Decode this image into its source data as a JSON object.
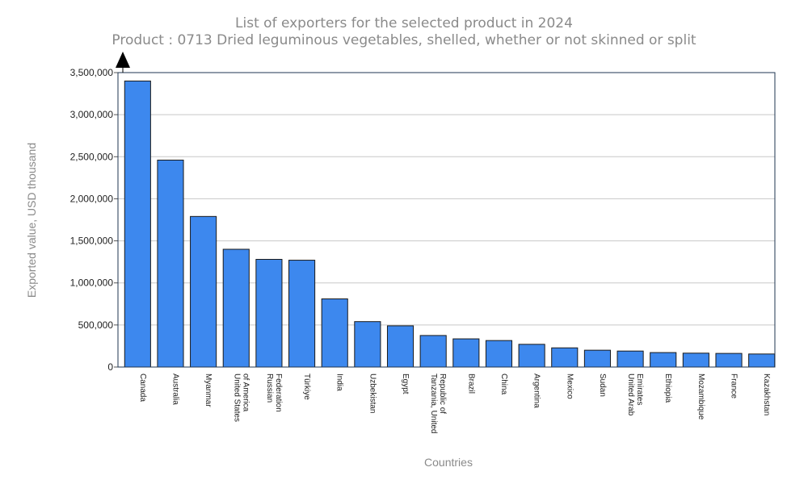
{
  "chart_data": {
    "type": "bar",
    "title": "List of exporters for the selected product in 2024",
    "subtitle": "Product : 0713 Dried leguminous vegetables, shelled, whether or not skinned or split",
    "xlabel": "Countries",
    "ylabel": "Exported value, USD thousand",
    "ylim": [
      0,
      3500000
    ],
    "yticks": [
      "0",
      "500,000",
      "1,000,000",
      "1,500,000",
      "2,000,000",
      "2,500,000",
      "3,000,000",
      "3,500,000"
    ],
    "grid": true,
    "categories": [
      [
        "Canada"
      ],
      [
        "Australia"
      ],
      [
        "Myanmar"
      ],
      [
        "United States",
        "of America"
      ],
      [
        "Russian",
        "Federation"
      ],
      [
        "Türkiye"
      ],
      [
        "India"
      ],
      [
        "Uzbekistan"
      ],
      [
        "Egypt"
      ],
      [
        "Tanzania, United",
        "Republic of"
      ],
      [
        "Brazil"
      ],
      [
        "China"
      ],
      [
        "Argentina"
      ],
      [
        "Mexico"
      ],
      [
        "Sudan"
      ],
      [
        "United Arab",
        "Emirates"
      ],
      [
        "Ethiopia"
      ],
      [
        "Mozambique"
      ],
      [
        "France"
      ],
      [
        "Kazakhstan"
      ]
    ],
    "values": [
      3400000,
      2460000,
      1790000,
      1400000,
      1280000,
      1270000,
      810000,
      540000,
      490000,
      375000,
      335000,
      315000,
      270000,
      228000,
      200000,
      190000,
      172000,
      165000,
      162000,
      155000
    ],
    "colors": {
      "bar": "#3d88ee",
      "bar_outline": "#1a1a1a"
    }
  }
}
